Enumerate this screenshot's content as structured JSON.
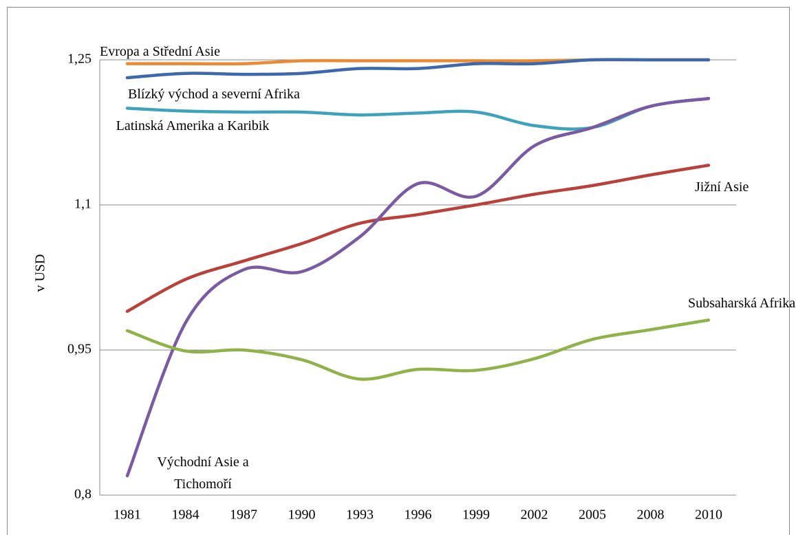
{
  "chart_data": {
    "type": "line",
    "y_label": "v USD",
    "categories": [
      "1981",
      "1984",
      "1987",
      "1990",
      "1993",
      "1996",
      "1999",
      "2002",
      "2005",
      "2008",
      "2010"
    ],
    "ylim": [
      0.8,
      1.25
    ],
    "yticks": [
      {
        "value": 0.8,
        "label": "0,8"
      },
      {
        "value": 0.95,
        "label": "0,95"
      },
      {
        "value": 1.1,
        "label": "1,1"
      },
      {
        "value": 1.25,
        "label": "1,25"
      }
    ],
    "grid": true,
    "series": [
      {
        "name": "Evropa a Střední Asie",
        "color": "#ea8a34",
        "values": [
          1.246,
          1.246,
          1.246,
          1.249,
          1.249,
          1.249,
          1.249,
          1.249,
          1.25,
          1.25,
          1.25
        ]
      },
      {
        "name": "Blízký východ a severní Afrika",
        "color": "#3d69ac",
        "values": [
          1.2315,
          1.236,
          1.235,
          1.236,
          1.241,
          1.241,
          1.246,
          1.246,
          1.25,
          1.25,
          1.25
        ]
      },
      {
        "name": "Latinská Amerika a Karibik",
        "color": "#3fa2bd",
        "values": [
          1.2,
          1.197,
          1.196,
          1.196,
          1.193,
          1.195,
          1.196,
          1.182,
          1.18,
          1.202,
          1.21
        ]
      },
      {
        "name": "Jižní Asie",
        "color": "#b9413c",
        "values": [
          0.99,
          1.023,
          1.042,
          1.06,
          1.081,
          1.09,
          1.1,
          1.111,
          1.12,
          1.131,
          1.141
        ]
      },
      {
        "name": "Východní Asie a Tichomoří",
        "color": "#7a5aa0",
        "values": [
          0.82,
          0.978,
          1.033,
          1.031,
          1.067,
          1.122,
          1.109,
          1.161,
          1.18,
          1.202,
          1.21
        ]
      },
      {
        "name": "Subsaharská Afrika",
        "color": "#8fb24a",
        "values": [
          0.97,
          0.949,
          0.95,
          0.94,
          0.92,
          0.93,
          0.929,
          0.941,
          0.961,
          0.971,
          0.981
        ]
      }
    ]
  }
}
